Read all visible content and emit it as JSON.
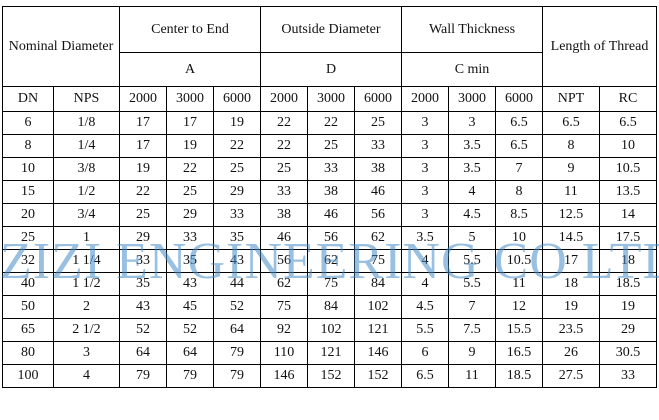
{
  "header": {
    "nominal_diameter": "Nominal Diameter",
    "center_to_end": "Center to End",
    "outside_diameter": "Outside Diameter",
    "wall_thickness": "Wall Thickness",
    "length_of_thread": "Length of Thread",
    "center_symbol": "A",
    "outside_symbol": "D",
    "wall_symbol": "C min",
    "dn": "DN",
    "nps": "NPS",
    "classes": [
      "2000",
      "3000",
      "6000"
    ],
    "npt": "NPT",
    "rc": "RC"
  },
  "rows": [
    [
      "6",
      "1/8",
      "17",
      "17",
      "19",
      "22",
      "22",
      "25",
      "3",
      "3",
      "6.5",
      "6.5",
      "6.5"
    ],
    [
      "8",
      "1/4",
      "17",
      "19",
      "22",
      "22",
      "25",
      "33",
      "3",
      "3.5",
      "6.5",
      "8",
      "10"
    ],
    [
      "10",
      "3/8",
      "19",
      "22",
      "25",
      "25",
      "33",
      "38",
      "3",
      "3.5",
      "7",
      "9",
      "10.5"
    ],
    [
      "15",
      "1/2",
      "22",
      "25",
      "29",
      "33",
      "38",
      "46",
      "3",
      "4",
      "8",
      "11",
      "13.5"
    ],
    [
      "20",
      "3/4",
      "25",
      "29",
      "33",
      "38",
      "46",
      "56",
      "3",
      "4.5",
      "8.5",
      "12.5",
      "14"
    ],
    [
      "25",
      "1",
      "29",
      "33",
      "35",
      "46",
      "56",
      "62",
      "3.5",
      "5",
      "10",
      "14.5",
      "17.5"
    ],
    [
      "32",
      "1 1/4",
      "33",
      "35",
      "43",
      "56",
      "62",
      "75",
      "4",
      "5.5",
      "10.5",
      "17",
      "18"
    ],
    [
      "40",
      "1 1/2",
      "35",
      "43",
      "44",
      "62",
      "75",
      "84",
      "4",
      "5.5",
      "11",
      "18",
      "18.5"
    ],
    [
      "50",
      "2",
      "43",
      "45",
      "52",
      "75",
      "84",
      "102",
      "4.5",
      "7",
      "12",
      "19",
      "19"
    ],
    [
      "65",
      "2 1/2",
      "52",
      "52",
      "64",
      "92",
      "102",
      "121",
      "5.5",
      "7.5",
      "15.5",
      "23.5",
      "29"
    ],
    [
      "80",
      "3",
      "64",
      "64",
      "79",
      "110",
      "121",
      "146",
      "6",
      "9",
      "16.5",
      "26",
      "30.5"
    ],
    [
      "100",
      "4",
      "79",
      "79",
      "79",
      "146",
      "152",
      "152",
      "6.5",
      "11",
      "18.5",
      "27.5",
      "33"
    ]
  ],
  "watermark": "ZIZI ENGINEERING CO LTD"
}
